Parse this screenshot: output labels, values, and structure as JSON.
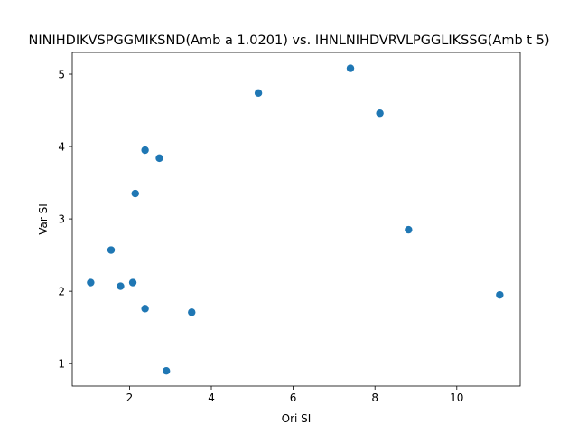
{
  "chart_data": {
    "type": "scatter",
    "title": "NINIHDIKVSPGGMIKSND(Amb a 1.0201) vs. IHNLNIHDVRVLPGGLIKSSG(Amb t 5)",
    "xlabel": "Ori SI",
    "ylabel": "Var SI",
    "xlim": [
      0.6,
      11.55
    ],
    "ylim": [
      0.69,
      5.3
    ],
    "xticks": [
      2,
      4,
      6,
      8,
      10
    ],
    "yticks": [
      1,
      2,
      3,
      4,
      5
    ],
    "grid": false,
    "marker_color": "#1f77b4",
    "points": [
      {
        "x": 1.05,
        "y": 2.12
      },
      {
        "x": 1.55,
        "y": 2.57
      },
      {
        "x": 1.78,
        "y": 2.07
      },
      {
        "x": 2.08,
        "y": 2.12
      },
      {
        "x": 2.14,
        "y": 3.35
      },
      {
        "x": 2.38,
        "y": 3.95
      },
      {
        "x": 2.38,
        "y": 1.76
      },
      {
        "x": 2.73,
        "y": 3.84
      },
      {
        "x": 2.9,
        "y": 0.9
      },
      {
        "x": 3.52,
        "y": 1.71
      },
      {
        "x": 5.15,
        "y": 4.74
      },
      {
        "x": 7.4,
        "y": 5.08
      },
      {
        "x": 8.12,
        "y": 4.46
      },
      {
        "x": 8.82,
        "y": 2.85
      },
      {
        "x": 11.05,
        "y": 1.95
      }
    ]
  }
}
